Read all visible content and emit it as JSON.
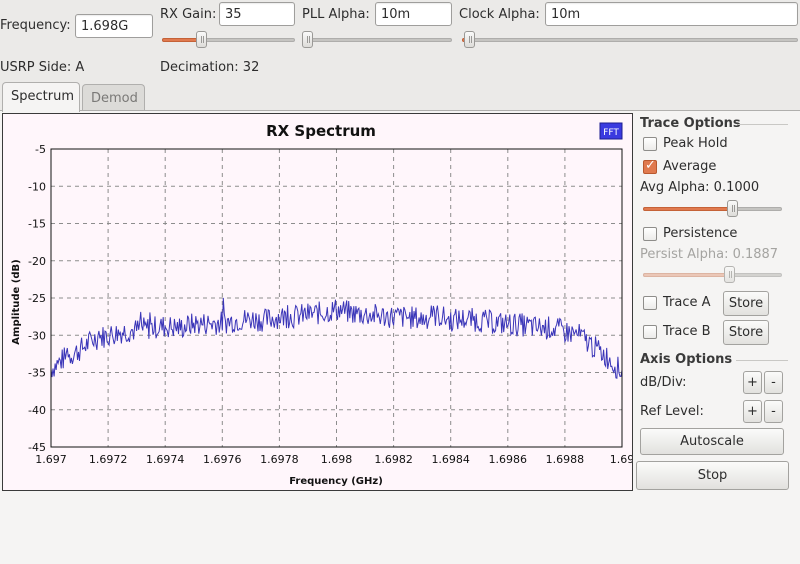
{
  "top": {
    "frequency_label": "Frequency:",
    "frequency_value": "1.698G",
    "rx_gain_label": "RX Gain:",
    "rx_gain_value": "35",
    "rx_gain_level": 0.3,
    "pll_alpha_label": "PLL Alpha:",
    "pll_alpha_value": "10m",
    "pll_alpha_level": 0.02,
    "clock_alpha_label": "Clock Alpha:",
    "clock_alpha_value": "10m",
    "clock_alpha_level": 0.02,
    "usrp_side": "USRP Side: A",
    "decimation": "Decimation: 32"
  },
  "tabs": {
    "spectrum": "Spectrum",
    "demod": "Demod"
  },
  "chart_data": {
    "type": "line",
    "title": "RX Spectrum",
    "xlabel": "Frequency (GHz)",
    "ylabel": "Amplitude (dB)",
    "xlim": [
      1.697,
      1.699
    ],
    "ylim": [
      -45,
      -5
    ],
    "xticks": [
      "1.697",
      "1.6972",
      "1.6974",
      "1.6976",
      "1.6978",
      "1.698",
      "1.6982",
      "1.6984",
      "1.6986",
      "1.6988",
      "1.69"
    ],
    "yticks": [
      "-5",
      "-10",
      "-15",
      "-20",
      "-25",
      "-30",
      "-35",
      "-40",
      "-45"
    ],
    "grid": true,
    "badge": "FFT",
    "line_color": "#3a35b8",
    "series": [
      {
        "x": [
          1.697,
          1.69705,
          1.6971,
          1.69715,
          1.6972,
          1.69725,
          1.6973,
          1.69735,
          1.6974,
          1.69745,
          1.6975,
          1.69755,
          1.6976,
          1.69765,
          1.6977,
          1.69775,
          1.6978,
          1.69785,
          1.6979,
          1.69795,
          1.698,
          1.69805,
          1.6981,
          1.69815,
          1.6982,
          1.69825,
          1.6983,
          1.69835,
          1.6984,
          1.69845,
          1.6985,
          1.69855,
          1.6986,
          1.69865,
          1.6987,
          1.69875,
          1.6988,
          1.69885,
          1.6989,
          1.69895,
          1.699
        ],
        "values": [
          -34.5,
          -33.0,
          -32.0,
          -30.5,
          -30.0,
          -29.5,
          -29.3,
          -29.0,
          -28.8,
          -29.0,
          -28.5,
          -28.4,
          -28.3,
          -28.0,
          -27.8,
          -28.0,
          -27.5,
          -27.5,
          -27.2,
          -27.0,
          -26.5,
          -27.0,
          -27.2,
          -27.4,
          -27.5,
          -27.6,
          -27.8,
          -27.3,
          -28.0,
          -27.8,
          -28.0,
          -28.3,
          -28.5,
          -28.6,
          -29.0,
          -29.0,
          -29.5,
          -30.0,
          -31.5,
          -33.0,
          -35.0
        ]
      }
    ]
  },
  "trace_options": {
    "title": "Trace Options",
    "peak_hold": "Peak Hold",
    "peak_hold_checked": false,
    "average": "Average",
    "average_checked": true,
    "avg_alpha": "Avg Alpha: 0.1000",
    "avg_alpha_level": 0.65,
    "persistence": "Persistence",
    "persistence_checked": false,
    "persist_alpha": "Persist Alpha: 0.1887",
    "persist_alpha_level": 0.63,
    "trace_a": "Trace A",
    "trace_b": "Trace B",
    "store": "Store"
  },
  "axis_options": {
    "title": "Axis Options",
    "db_div": "dB/Div:",
    "ref_level": "Ref Level:",
    "plus": "+",
    "minus": "-",
    "autoscale": "Autoscale",
    "stop": "Stop"
  }
}
